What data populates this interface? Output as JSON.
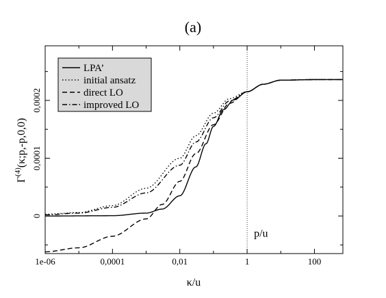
{
  "chart_data": {
    "type": "line",
    "title": "(a)",
    "xlabel": "κ/u",
    "ylabel": {
      "base": "Γ",
      "sup": "(4)",
      "rest": "(κ;p,-p,0,0)"
    },
    "x_scale": "log10",
    "xlim": [
      1e-06,
      700
    ],
    "ylim": [
      -6.5e-05,
      0.0002945
    ],
    "x_ticks": [
      {
        "value": 1e-06,
        "label": "1e-06"
      },
      {
        "value": 0.0001,
        "label": "0,0001"
      },
      {
        "value": 0.01,
        "label": "0,01"
      },
      {
        "value": 1,
        "label": "1"
      },
      {
        "value": 100,
        "label": "100"
      }
    ],
    "y_ticks": [
      {
        "value": 0,
        "label": "0"
      },
      {
        "value": 0.0001,
        "label": "0,0001"
      },
      {
        "value": 0.0002,
        "label": "0,0002"
      }
    ],
    "vline": {
      "x": 1,
      "label": "p/u"
    },
    "legend_position": "top-left",
    "series": [
      {
        "name": "LPA’",
        "style": "solid",
        "points": [
          [
            1e-06,
            0
          ],
          [
            0.0001,
            5e-07
          ],
          [
            0.001,
            5e-06
          ],
          [
            0.003,
            1.2e-05
          ],
          [
            0.01,
            3.5e-05
          ],
          [
            0.03,
            8.5e-05
          ],
          [
            0.06,
            0.000125
          ],
          [
            0.1,
            0.000155
          ],
          [
            0.2,
            0.000184
          ],
          [
            0.4,
            0.000201
          ],
          [
            1,
            0.000215
          ],
          [
            3,
            0.000228
          ],
          [
            10,
            0.000235
          ],
          [
            100,
            0.000236
          ],
          [
            700,
            0.000236
          ]
        ]
      },
      {
        "name": "initial ansatz",
        "style": "dotted",
        "points": [
          [
            1e-06,
            3e-06
          ],
          [
            1e-05,
            6e-06
          ],
          [
            0.0001,
            1.8e-05
          ],
          [
            0.001,
            4.8e-05
          ],
          [
            0.01,
            0.0001
          ],
          [
            0.03,
            0.000139
          ],
          [
            0.1,
            0.000178
          ],
          [
            0.3,
            0.000203
          ],
          [
            1,
            0.000215
          ],
          [
            3,
            0.000228
          ],
          [
            10,
            0.000235
          ],
          [
            100,
            0.000236
          ],
          [
            700,
            0.000236
          ]
        ]
      },
      {
        "name": "direct LO",
        "style": "dashed",
        "points": [
          [
            1e-06,
            -6.2e-05
          ],
          [
            1e-05,
            -5.5e-05
          ],
          [
            0.0001,
            -3.5e-05
          ],
          [
            0.001,
            -5e-06
          ],
          [
            0.003,
            2e-05
          ],
          [
            0.01,
            6e-05
          ],
          [
            0.03,
            0.000108
          ],
          [
            0.1,
            0.000158
          ],
          [
            0.3,
            0.000195
          ],
          [
            1,
            0.000215
          ],
          [
            3,
            0.000228
          ],
          [
            10,
            0.000235
          ],
          [
            100,
            0.000236
          ],
          [
            700,
            0.000236
          ]
        ]
      },
      {
        "name": "improved LO",
        "style": "dashdot",
        "points": [
          [
            1e-06,
            2e-06
          ],
          [
            1e-05,
            5e-06
          ],
          [
            0.0001,
            1.5e-05
          ],
          [
            0.001,
            4e-05
          ],
          [
            0.01,
            8.8e-05
          ],
          [
            0.03,
            0.000128
          ],
          [
            0.1,
            0.00017
          ],
          [
            0.3,
            0.000199
          ],
          [
            1,
            0.000215
          ],
          [
            3,
            0.000228
          ],
          [
            10,
            0.000235
          ],
          [
            100,
            0.000236
          ],
          [
            700,
            0.000236
          ]
        ]
      }
    ]
  }
}
